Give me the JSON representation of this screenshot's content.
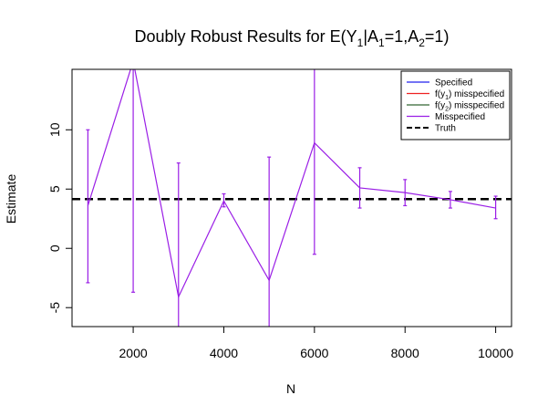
{
  "chart_data": {
    "type": "line",
    "title": "Doubly Robust Results for E(Y1|A1=1,A2=1)",
    "title_parts": {
      "prefix": "Doubly Robust Results for E(Y",
      "sub1": "1",
      "mid1": "|A",
      "sub2": "1",
      "mid2": "=1,A",
      "sub3": "2",
      "suffix": "=1)"
    },
    "xlabel": "N",
    "ylabel": "Estimate",
    "xlim": [
      650,
      10350
    ],
    "ylim": [
      -6.6,
      15.1
    ],
    "x_ticks": [
      2000,
      4000,
      6000,
      8000,
      10000
    ],
    "x_tick_labels": [
      "2000",
      "4000",
      "6000",
      "8000",
      "10000"
    ],
    "y_ticks": [
      -5,
      0,
      5,
      10
    ],
    "y_tick_labels": [
      "-5",
      "0",
      "5",
      "10"
    ],
    "legend_position": "top-right",
    "legend": [
      {
        "label": "Specified",
        "pre": "Specified",
        "sub": "",
        "post": "",
        "color": "#2222ee",
        "dash": false
      },
      {
        "label": "f(y1) misspecified",
        "pre": "f(y",
        "sub": "1",
        "post": ") misspecified",
        "color": "#ee2222",
        "dash": false
      },
      {
        "label": "f(y2) misspecified",
        "pre": "f(y",
        "sub": "2",
        "post": ") misspecified",
        "color": "#336633",
        "dash": false
      },
      {
        "label": "Misspecified",
        "pre": "Misspecified",
        "sub": "",
        "post": "",
        "color": "#9a1ee6",
        "dash": false
      },
      {
        "label": "Truth",
        "pre": "Truth",
        "sub": "",
        "post": "",
        "color": "#000000",
        "dash": true
      }
    ],
    "truth": 4.15,
    "series": [
      {
        "name": "Misspecified",
        "color": "#9a1ee6",
        "x": [
          1000,
          2000,
          3000,
          4000,
          5000,
          6000,
          7000,
          8000,
          9000,
          10000
        ],
        "y": [
          3.6,
          15.8,
          -4.1,
          4.0,
          -2.7,
          8.9,
          5.1,
          4.7,
          4.1,
          3.4
        ],
        "lower": [
          -2.9,
          -3.7,
          -6.6,
          3.5,
          -6.6,
          -0.5,
          3.4,
          3.6,
          3.4,
          2.5
        ],
        "upper": [
          10.0,
          15.1,
          7.2,
          4.6,
          7.7,
          15.1,
          6.8,
          5.8,
          4.8,
          4.4
        ]
      }
    ]
  }
}
